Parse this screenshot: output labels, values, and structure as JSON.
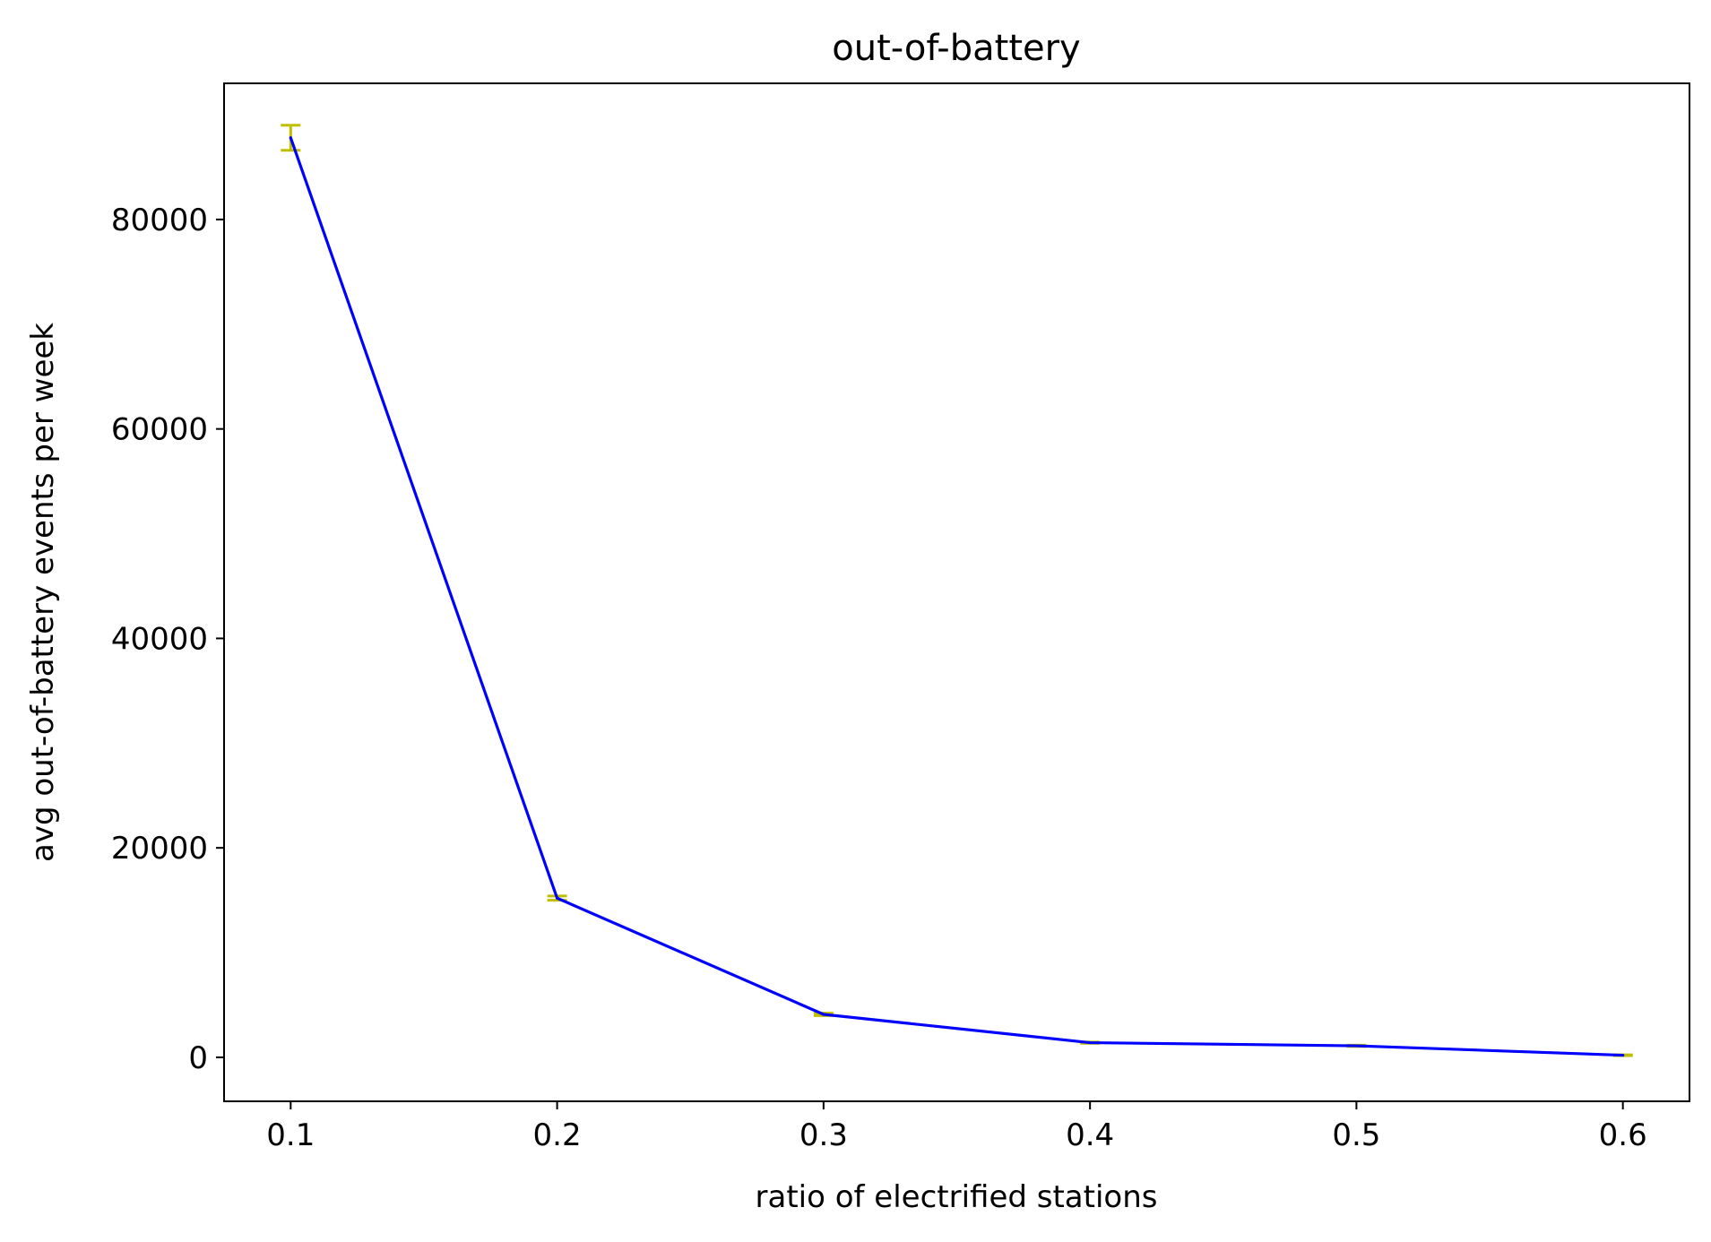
{
  "chart_data": {
    "type": "line",
    "title": "out-of-battery",
    "xlabel": "ratio of electrified stations",
    "ylabel": "avg out-of-battery events per week",
    "xlim": [
      0.075,
      0.625
    ],
    "ylim": [
      -4200,
      93000
    ],
    "x_ticks": [
      0.1,
      0.2,
      0.3,
      0.4,
      0.5,
      0.6
    ],
    "x_tick_labels": [
      "0.1",
      "0.2",
      "0.3",
      "0.4",
      "0.5",
      "0.6"
    ],
    "y_ticks": [
      0,
      20000,
      40000,
      60000,
      80000
    ],
    "y_tick_labels": [
      "0",
      "20000",
      "40000",
      "60000",
      "80000"
    ],
    "grid": false,
    "legend": "none",
    "series": [
      {
        "x": [
          0.1,
          0.2,
          0.3,
          0.4,
          0.5,
          0.6
        ],
        "y": [
          87800,
          15200,
          4100,
          1400,
          1100,
          200
        ],
        "yerr": [
          1200,
          200,
          120,
          60,
          60,
          40
        ],
        "line_color": "#0000ff",
        "errorbar_color": "#bfbf00"
      }
    ]
  }
}
